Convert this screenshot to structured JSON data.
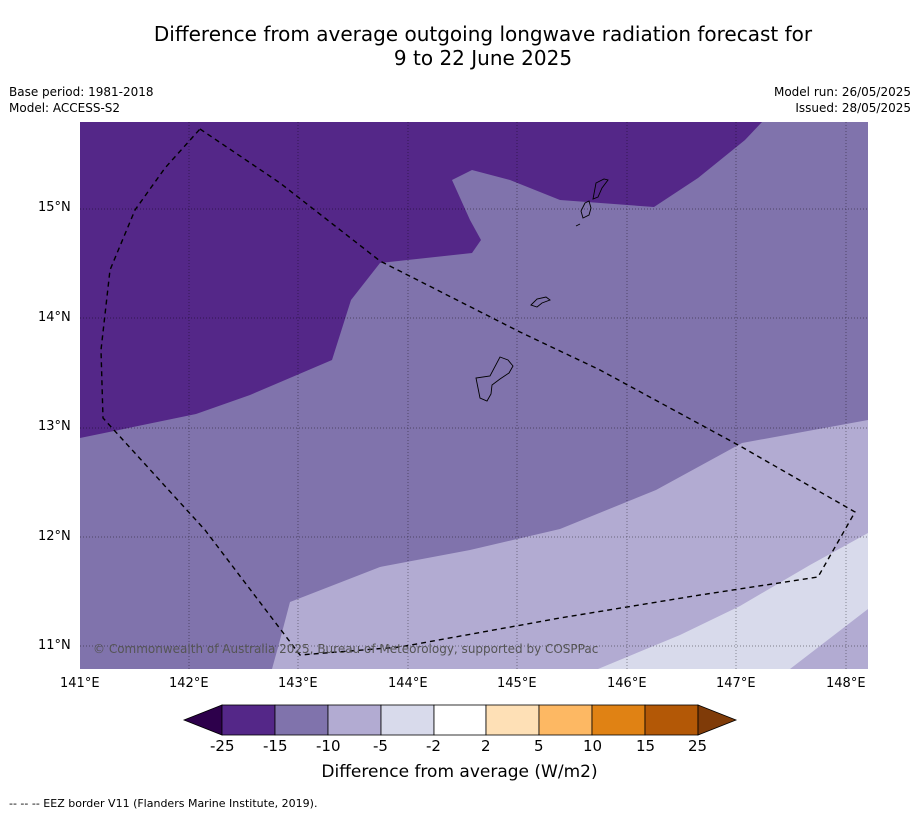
{
  "title_line1": "Difference from average outgoing longwave radiation forecast for",
  "title_line2": "9 to 22 June 2025",
  "meta": {
    "base_period": "Base period: 1981-2018",
    "model": "Model: ACCESS-S2",
    "model_run": "Model run: 26/05/2025",
    "issued": "Issued: 28/05/2025"
  },
  "map": {
    "lon_range": [
      141.0,
      148.2
    ],
    "lat_range": [
      10.8,
      15.8
    ],
    "lat_ticks": [
      {
        "value": 15,
        "label": "15°N"
      },
      {
        "value": 14,
        "label": "14°N"
      },
      {
        "value": 13,
        "label": "13°N"
      },
      {
        "value": 12,
        "label": "12°N"
      },
      {
        "value": 11,
        "label": "11°N"
      }
    ],
    "lon_ticks": [
      {
        "value": 141,
        "label": "141°E"
      },
      {
        "value": 142,
        "label": "142°E"
      },
      {
        "value": 143,
        "label": "143°E"
      },
      {
        "value": 144,
        "label": "144°E"
      },
      {
        "value": 145,
        "label": "145°E"
      },
      {
        "value": 146,
        "label": "146°E"
      },
      {
        "value": 147,
        "label": "147°E"
      },
      {
        "value": 148,
        "label": "148°E"
      }
    ],
    "copyright": "© Commonwealth of Australia 2025, Bureau of Meteorology, supported by COSPPac"
  },
  "colorbar": {
    "boundaries": [
      "-25",
      "-15",
      "-10",
      "-5",
      "-2",
      "2",
      "5",
      "10",
      "15",
      "25"
    ],
    "colors": [
      "#2d004b",
      "#542788",
      "#8073ac",
      "#b2abd2",
      "#d8daeb",
      "#ffffff",
      "#fee0b6",
      "#fdb863",
      "#e08214",
      "#b35806",
      "#7f3b08"
    ],
    "title": "Difference from average (W/m2)"
  },
  "footnote": "-- -- -- EEZ border V11 (Flanders Marine Institute, 2019)."
}
